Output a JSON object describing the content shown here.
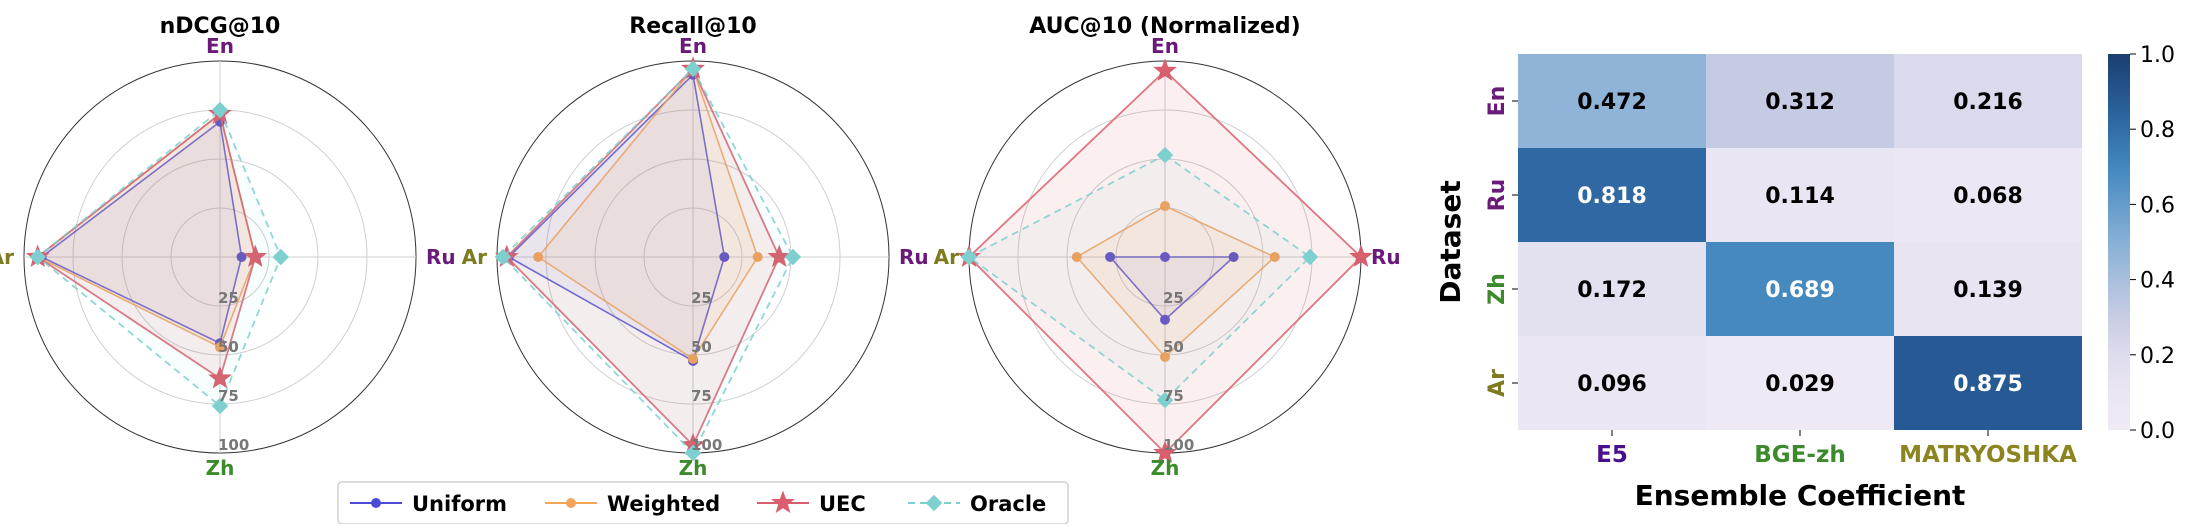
{
  "colors": {
    "uniform": "#4b4bd6",
    "weighted": "#f2a65a",
    "uec": "#d95f6e",
    "oracle": "#7ecfcf",
    "lang_en": "#6a1b7a",
    "lang_ru": "#6a1b7a",
    "lang_zh": "#3c8a2c",
    "lang_ar": "#7d7a20",
    "model_e5": "#4a0f8c",
    "model_bge": "#3c8a2c",
    "model_mat": "#8b8420"
  },
  "chart_data": [
    {
      "type": "radar",
      "title": "nDCG@10",
      "axes": [
        "En",
        "Ru",
        "Zh",
        "Ar"
      ],
      "radial_ticks": [
        "25",
        "50",
        "75",
        "100"
      ],
      "rmax": 100,
      "series": [
        {
          "name": "Uniform",
          "values": [
            69,
            11,
            44,
            91
          ]
        },
        {
          "name": "Weighted",
          "values": [
            73,
            18,
            46,
            93
          ]
        },
        {
          "name": "UEC",
          "values": [
            73,
            18,
            62,
            93
          ]
        },
        {
          "name": "Oracle",
          "values": [
            75,
            31,
            76,
            93
          ]
        }
      ]
    },
    {
      "type": "radar",
      "title": "Recall@10",
      "axes": [
        "En",
        "Ru",
        "Zh",
        "Ar"
      ],
      "radial_ticks": [
        "25",
        "50",
        "75",
        "100"
      ],
      "rmax": 100,
      "series": [
        {
          "name": "Uniform",
          "values": [
            93,
            16,
            53,
            94
          ]
        },
        {
          "name": "Weighted",
          "values": [
            96,
            33,
            52,
            79
          ]
        },
        {
          "name": "UEC",
          "values": [
            96,
            44,
            96,
            95
          ]
        },
        {
          "name": "Oracle",
          "values": [
            96,
            51,
            100,
            97
          ]
        }
      ]
    },
    {
      "type": "radar",
      "title": "AUC@10 (Normalized)",
      "axes": [
        "En",
        "Ru",
        "Zh",
        "Ar"
      ],
      "radial_ticks": [
        "25",
        "50",
        "75",
        "100"
      ],
      "rmax": 100,
      "series": [
        {
          "name": "Uniform",
          "values": [
            0,
            35,
            32,
            28
          ]
        },
        {
          "name": "Weighted",
          "values": [
            26,
            56,
            51,
            45
          ]
        },
        {
          "name": "UEC",
          "values": [
            95,
            100,
            100,
            100
          ]
        },
        {
          "name": "Oracle",
          "values": [
            52,
            74,
            73,
            100
          ]
        }
      ]
    },
    {
      "type": "heatmap",
      "xlabel": "Ensemble Coefficient",
      "ylabel": "Dataset",
      "rows": [
        "En",
        "Ru",
        "Zh",
        "Ar"
      ],
      "columns": [
        "E5",
        "BGE-zh",
        "MATRYOSHKA"
      ],
      "values": [
        [
          0.472,
          0.312,
          0.216
        ],
        [
          0.818,
          0.114,
          0.068
        ],
        [
          0.172,
          0.689,
          0.139
        ],
        [
          0.096,
          0.029,
          0.875
        ]
      ],
      "cell_labels": [
        [
          "0.472",
          "0.312",
          "0.216"
        ],
        [
          "0.818",
          "0.114",
          "0.068"
        ],
        [
          "0.172",
          "0.689",
          "0.139"
        ],
        [
          "0.096",
          "0.029",
          "0.875"
        ]
      ],
      "colorbar_ticks": [
        "0.0",
        "0.2",
        "0.4",
        "0.6",
        "0.8",
        "1.0"
      ],
      "vmin": 0,
      "vmax": 1,
      "colormap": "Blues"
    }
  ],
  "legend": {
    "position": "bottom-center",
    "items": [
      {
        "name": "Uniform",
        "marker": "circle",
        "dash": false
      },
      {
        "name": "Weighted",
        "marker": "circle",
        "dash": false
      },
      {
        "name": "UEC",
        "marker": "star",
        "dash": false
      },
      {
        "name": "Oracle",
        "marker": "diamond",
        "dash": true
      }
    ]
  }
}
